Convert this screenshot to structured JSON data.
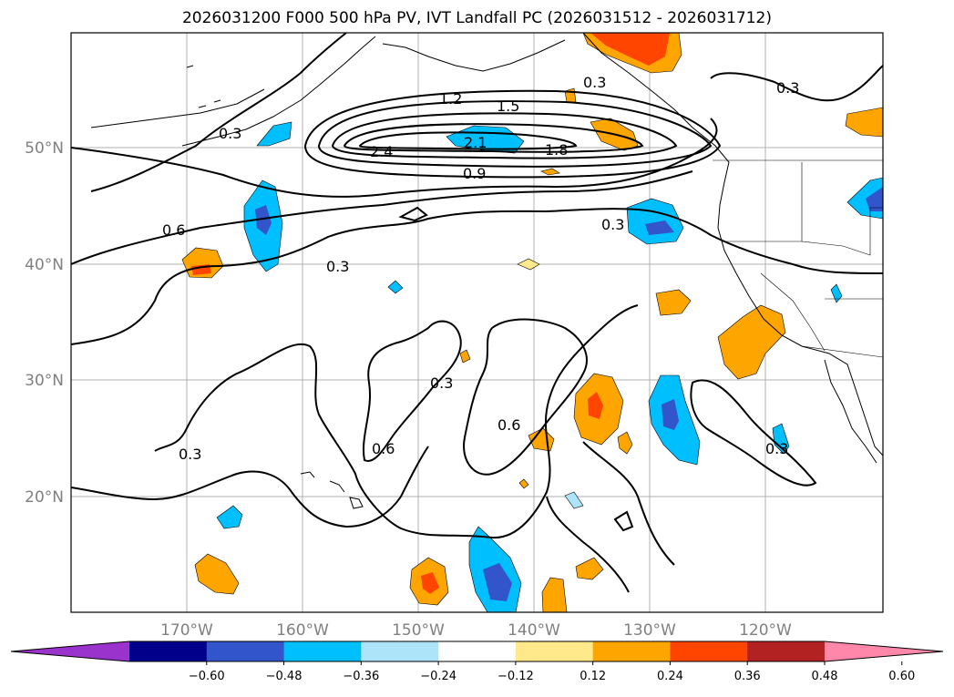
{
  "title": "2026031200 F000 500 hPa PV, IVT Landfall PC (2026031512 - 2026031712)",
  "map": {
    "lon_labels": [
      "170°W",
      "160°W",
      "150°W",
      "140°W",
      "130°W",
      "120°W"
    ],
    "lat_labels": [
      "50°N",
      "40°N",
      "30°N",
      "20°N"
    ],
    "contour_labels": [
      "1.2",
      "1.5",
      "2.4",
      "2.1",
      "1.8",
      "0.9",
      "0.3",
      "0.6",
      "0.3",
      "0.3",
      "0.3",
      "0.6",
      "0.6",
      "0.3",
      "0.3",
      "0.3",
      "0.3"
    ]
  },
  "colorbar": {
    "tick_labels": [
      "−0.60",
      "−0.48",
      "−0.36",
      "−0.24",
      "−0.12",
      "0.12",
      "0.24",
      "0.36",
      "0.48",
      "0.60"
    ],
    "colors": [
      "#9933cc",
      "#00008b",
      "#3355cc",
      "#00bfff",
      "#aee4fa",
      "#ffffff",
      "#ffe98a",
      "#ffa500",
      "#ff4500",
      "#b22222",
      "#ff88aa"
    ]
  }
}
